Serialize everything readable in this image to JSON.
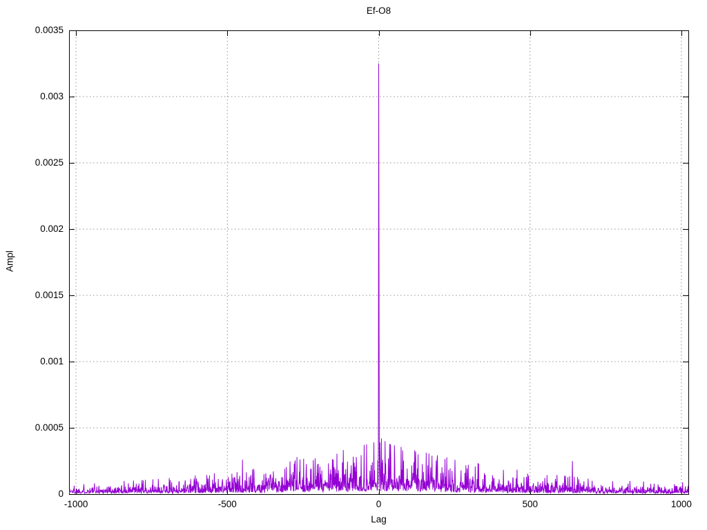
{
  "chart_data": {
    "type": "line",
    "title": "Ef-O8",
    "xlabel": "Lag",
    "ylabel": "Ampl",
    "xlim": [
      -1023,
      1023
    ],
    "ylim": [
      0,
      0.0035
    ],
    "x_ticks": [
      {
        "value": -1000,
        "label": "-1000"
      },
      {
        "value": -500,
        "label": "-500"
      },
      {
        "value": 0,
        "label": "0"
      },
      {
        "value": 500,
        "label": "500"
      },
      {
        "value": 1000,
        "label": "1000"
      }
    ],
    "y_ticks": [
      {
        "value": 0,
        "label": "0"
      },
      {
        "value": 0.0005,
        "label": "0.0005"
      },
      {
        "value": 0.001,
        "label": "0.001"
      },
      {
        "value": 0.0015,
        "label": "0.0015"
      },
      {
        "value": 0.002,
        "label": "0.002"
      },
      {
        "value": 0.0025,
        "label": "0.0025"
      },
      {
        "value": 0.003,
        "label": "0.003"
      },
      {
        "value": 0.0035,
        "label": "0.0035"
      }
    ],
    "grid": "dotted",
    "grid_color": "#8f8f8f",
    "border_color": "#000000",
    "line_color": "#9400d3",
    "background_color": "#ffffff",
    "main_peaks": [
      {
        "lag": -1,
        "ampl": 0.00042
      },
      {
        "lag": 0,
        "ampl": 0.00325
      },
      {
        "lag": 1,
        "ampl": 0.0017
      }
    ],
    "notable_spikes": [
      {
        "lag": -450,
        "ampl": 0.00026
      },
      {
        "lag": -270,
        "ampl": 0.00028
      },
      {
        "lag": -210,
        "ampl": 0.00027
      },
      {
        "lag": -120,
        "ampl": 0.00024
      },
      {
        "lag": 9,
        "ampl": 0.00042
      },
      {
        "lag": 21,
        "ampl": 0.0004
      },
      {
        "lag": 79,
        "ampl": 0.00033
      },
      {
        "lag": 130,
        "ampl": 0.0003
      },
      {
        "lag": 640,
        "ampl": 0.00025
      }
    ],
    "noise_floor": {
      "description": "dense random noise hugging zero, envelope ~0.00004 at lags ±1023 rising to ~0.00018 near lag 0",
      "edge_envelope": 4e-05,
      "center_envelope": 0.00018,
      "n_points": 2047,
      "seed": 1337
    }
  }
}
